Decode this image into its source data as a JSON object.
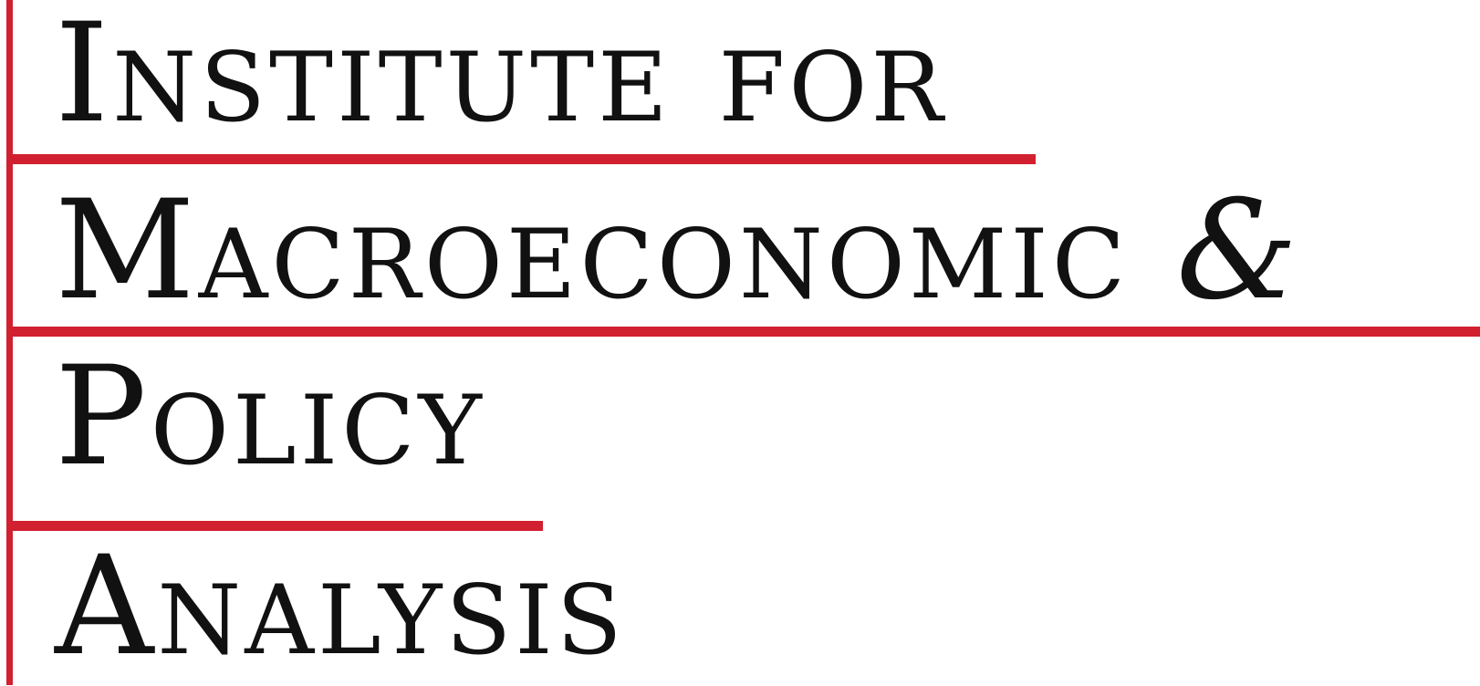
{
  "logo": {
    "lines": [
      "Institute for",
      "Macroeconomic",
      "Policy",
      "Analysis"
    ],
    "ampersand": "&",
    "colors": {
      "accent": "#D12030",
      "text": "#111111",
      "background": "#FFFFFF"
    }
  }
}
